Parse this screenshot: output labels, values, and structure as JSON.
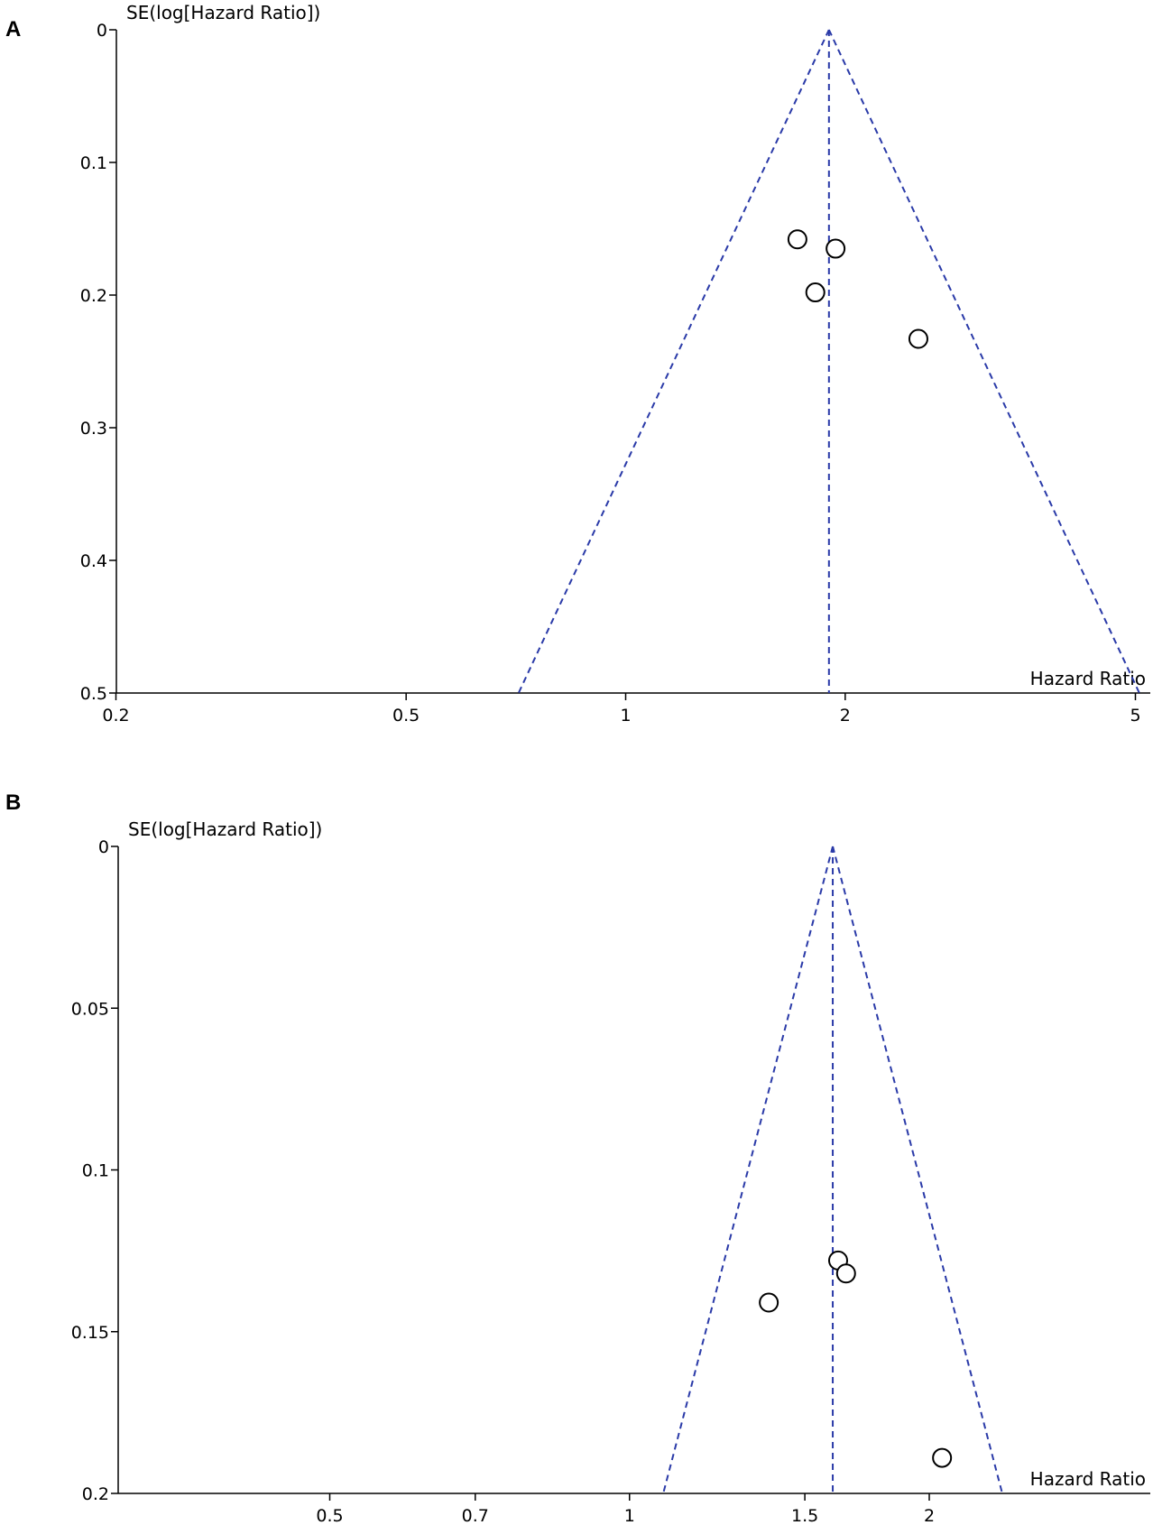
{
  "chart_data": [
    {
      "type": "scatter",
      "panel_label": "A",
      "ylabel": "SE(log[Hazard Ratio])",
      "xlabel": "Hazard Ratio",
      "x_scale": "log",
      "xlim": [
        0.19,
        5.2
      ],
      "ylim": [
        0,
        0.5
      ],
      "y_inverted": true,
      "x_ticks": [
        0.2,
        0.5,
        1,
        2,
        5
      ],
      "x_tick_labels": [
        "0.2",
        "0.5",
        "1",
        "2",
        "5"
      ],
      "y_ticks": [
        0,
        0.1,
        0.2,
        0.3,
        0.4,
        0.5
      ],
      "y_tick_labels": [
        "0",
        "0.1",
        "0.2",
        "0.3",
        "0.4",
        "0.5"
      ],
      "pooled_hr": 1.9,
      "points": [
        {
          "x": 1.72,
          "y": 0.158
        },
        {
          "x": 1.94,
          "y": 0.165
        },
        {
          "x": 1.82,
          "y": 0.198
        },
        {
          "x": 2.52,
          "y": 0.233
        }
      ]
    },
    {
      "type": "scatter",
      "panel_label": "B",
      "ylabel": "SE(log[Hazard Ratio])",
      "xlabel": "Hazard Ratio",
      "x_scale": "log",
      "xlim": [
        0.4,
        2.7
      ],
      "ylim": [
        0,
        0.2
      ],
      "y_inverted": true,
      "x_ticks": [
        0.5,
        0.7,
        1,
        1.5,
        2
      ],
      "x_tick_labels": [
        "0.5",
        "0.7",
        "1",
        "1.5",
        "2"
      ],
      "y_ticks": [
        0,
        0.05,
        0.1,
        0.15,
        0.2
      ],
      "y_tick_labels": [
        "0",
        "0.05",
        "0.1",
        "0.15",
        "0.2"
      ],
      "pooled_hr": 1.6,
      "points": [
        {
          "x": 1.62,
          "y": 0.128
        },
        {
          "x": 1.65,
          "y": 0.132
        },
        {
          "x": 1.38,
          "y": 0.141
        },
        {
          "x": 2.06,
          "y": 0.189
        }
      ]
    }
  ],
  "colors": {
    "funnel": "#2a3aa8",
    "points": "#000000",
    "axes": "#000000"
  }
}
